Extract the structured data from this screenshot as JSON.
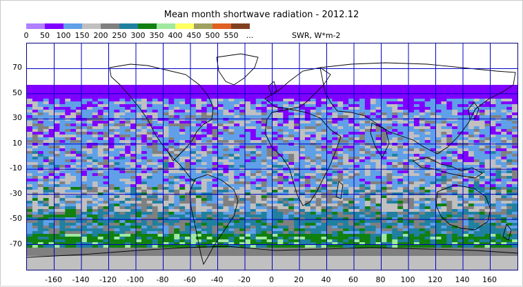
{
  "title": "Mean month shortwave radiation - 2012.12",
  "legend": {
    "colors": [
      "#b080ff",
      "#8000ff",
      "#5fa0e8",
      "#c0c0c0",
      "#808080",
      "#2080a0",
      "#108010",
      "#a0e8a0",
      "#ffff60",
      "#a0a060",
      "#e06020",
      "#804020"
    ],
    "labels": [
      "0",
      "50",
      "100",
      "150",
      "200",
      "250",
      "300",
      "350",
      "400",
      "450",
      "500",
      "550",
      "..."
    ],
    "unit": "SWR, W*m-2"
  },
  "map": {
    "y_ticks": [
      "70",
      "50",
      "30",
      "10",
      "-10",
      "-30",
      "-50",
      "-70"
    ],
    "x_ticks": [
      "-160",
      "-140",
      "-120",
      "-100",
      "-80",
      "-60",
      "-40",
      "-20",
      "0",
      "20",
      "40",
      "60",
      "80",
      "100",
      "120",
      "140",
      "160"
    ],
    "lat_range": [
      -90,
      90
    ],
    "lon_range": [
      -180,
      180
    ],
    "grid_color": "#0000c0",
    "coast_color": "#000000"
  }
}
